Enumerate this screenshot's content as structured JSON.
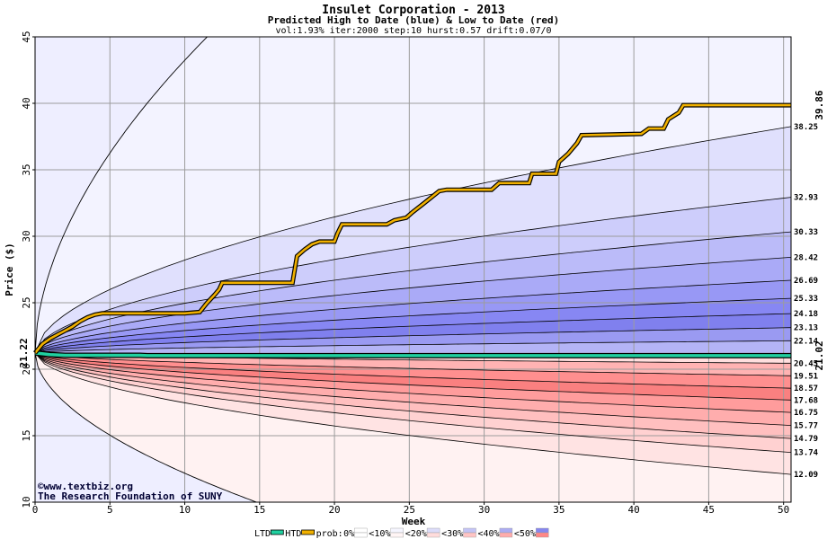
{
  "chart_data": {
    "type": "area",
    "title": "Insulet Corporation - 2013",
    "subtitle": "Predicted High to Date (blue) &  Low to Date (red)",
    "params": "vol:1.93% iter:2000 step:10 hurst:0.57 drift:0.07/0",
    "xlabel": "Week",
    "ylabel": "Price ($)",
    "xlim": [
      0,
      50.5
    ],
    "ylim": [
      10,
      45
    ],
    "xticks": [
      0,
      5,
      10,
      15,
      20,
      25,
      30,
      35,
      40,
      45,
      50
    ],
    "yticks": [
      10,
      15,
      20,
      25,
      30,
      35,
      40,
      45
    ],
    "grid": true,
    "start_price_label": "21.22",
    "start_price": 21.22,
    "current_low_label": "21.02",
    "current_low": 21.02,
    "current_high_label": "39.86",
    "current_high": 39.86,
    "upper_levels": [
      {
        "label": "38.25",
        "value": 38.25
      },
      {
        "label": "32.93",
        "value": 32.93
      },
      {
        "label": "30.33",
        "value": 30.33
      },
      {
        "label": "28.42",
        "value": 28.42
      },
      {
        "label": "26.69",
        "value": 26.69
      },
      {
        "label": "25.33",
        "value": 25.33
      },
      {
        "label": "24.18",
        "value": 24.18
      },
      {
        "label": "23.13",
        "value": 23.13
      },
      {
        "label": "22.14",
        "value": 22.14
      }
    ],
    "lower_levels": [
      {
        "label": "20.45",
        "value": 20.45
      },
      {
        "label": "19.51",
        "value": 19.51
      },
      {
        "label": "18.57",
        "value": 18.57
      },
      {
        "label": "17.68",
        "value": 17.68
      },
      {
        "label": "16.75",
        "value": 16.75
      },
      {
        "label": "15.77",
        "value": 15.77
      },
      {
        "label": "14.79",
        "value": 14.79
      },
      {
        "label": "13.74",
        "value": 13.74
      },
      {
        "label": "12.09",
        "value": 12.09
      }
    ],
    "outer_high_envelope": {
      "start": 21.22,
      "x_reach_top": 11.5,
      "top_value": 45
    },
    "outer_low_envelope": {
      "start": 21.22,
      "x_reach_bottom": 14.8,
      "bottom_value": 10
    },
    "htd_series": [
      [
        0,
        21.22
      ],
      [
        0.5,
        21.9
      ],
      [
        1,
        22.3
      ],
      [
        1.5,
        22.6
      ],
      [
        2,
        22.9
      ],
      [
        2.5,
        23.2
      ],
      [
        3,
        23.6
      ],
      [
        3.5,
        23.9
      ],
      [
        4,
        24.1
      ],
      [
        4.5,
        24.2
      ],
      [
        5,
        24.2
      ],
      [
        10,
        24.2
      ],
      [
        11,
        24.3
      ],
      [
        11.5,
        25.0
      ],
      [
        12,
        25.6
      ],
      [
        12.3,
        26.0
      ],
      [
        12.5,
        26.5
      ],
      [
        17.2,
        26.5
      ],
      [
        17.5,
        28.5
      ],
      [
        18,
        29.0
      ],
      [
        18.5,
        29.4
      ],
      [
        19,
        29.6
      ],
      [
        20,
        29.6
      ],
      [
        20.2,
        30.2
      ],
      [
        20.5,
        30.9
      ],
      [
        23.5,
        30.9
      ],
      [
        24,
        31.2
      ],
      [
        24.8,
        31.4
      ],
      [
        25.2,
        31.8
      ],
      [
        26,
        32.5
      ],
      [
        27,
        33.4
      ],
      [
        27.5,
        33.5
      ],
      [
        30.5,
        33.5
      ],
      [
        31,
        34.0
      ],
      [
        33,
        34.0
      ],
      [
        33.2,
        34.7
      ],
      [
        34.8,
        34.7
      ],
      [
        35,
        35.6
      ],
      [
        35.6,
        36.2
      ],
      [
        36.2,
        37.0
      ],
      [
        36.5,
        37.6
      ],
      [
        40.5,
        37.7
      ],
      [
        41,
        38.1
      ],
      [
        42,
        38.1
      ],
      [
        42.3,
        38.8
      ],
      [
        43,
        39.3
      ],
      [
        43.3,
        39.86
      ],
      [
        50.5,
        39.86
      ]
    ],
    "ltd_series": [
      [
        0,
        21.22
      ],
      [
        1,
        21.1
      ],
      [
        2,
        21.05
      ],
      [
        7,
        21.05
      ],
      [
        7.5,
        21.02
      ],
      [
        50.5,
        21.02
      ]
    ],
    "colors": {
      "plot_bg": "#eeeeff",
      "grid": "#9c9c9c",
      "htd": "#f0b000",
      "ltd": "#20d0a0",
      "high_label": "#b08000",
      "low_label": "#008060",
      "start_label": "#007050",
      "credit": "#000033",
      "bands_upper": [
        "#f3f3ff",
        "#e0e0fd",
        "#cdcdfb",
        "#bbbbf9",
        "#aaaaf7",
        "#9898f5",
        "#8787f3",
        "#8080ee",
        "#9a9af2",
        "#b4b4f6"
      ],
      "bands_lower": [
        "#fff2f2",
        "#ffe3e3",
        "#ffd1d1",
        "#ffbfbf",
        "#ffadad",
        "#ff9c9c",
        "#fa8080",
        "#ff8f8f",
        "#ffb3b3",
        "#ffdede"
      ]
    },
    "credit": {
      "line1": "©www.textbiz.org",
      "line2": "The Research Foundation of SUNY"
    },
    "legend": {
      "ltd": "LTD",
      "htd": "HTD",
      "prob_prefix": "prob:",
      "items": [
        "0%",
        "<10%",
        "<20%",
        "<30%",
        "<40%",
        "<50%"
      ],
      "swatch_colors": [
        "#ffffff",
        "#f5f5ff",
        "#dcdcfa",
        "#c4c4f6",
        "#acacf2",
        "#8787ee"
      ],
      "swatch_colors_low": [
        "#ffffff",
        "#fff5f5",
        "#ffdcdc",
        "#ffc4c4",
        "#ffacac",
        "#ff8787"
      ]
    }
  }
}
